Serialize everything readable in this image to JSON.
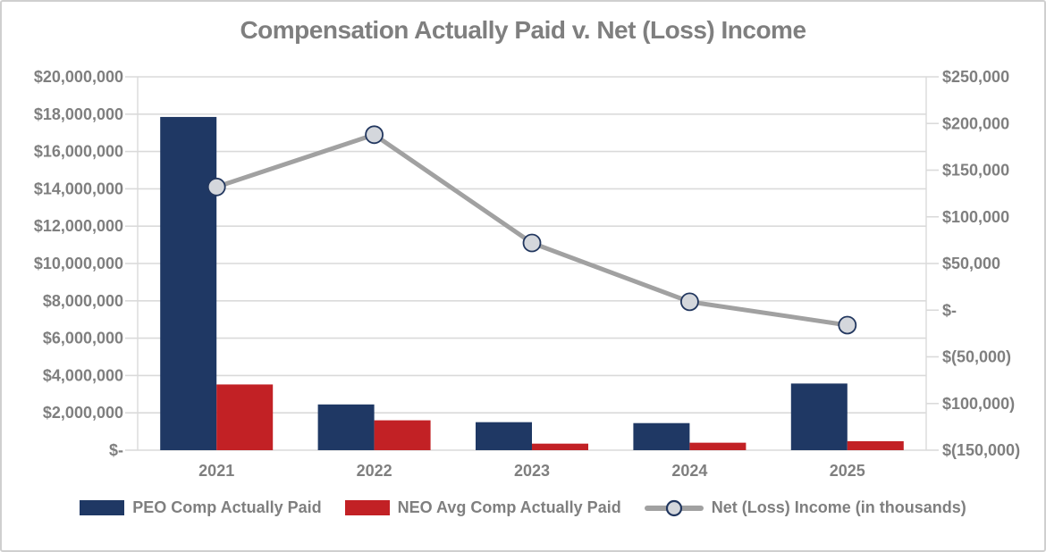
{
  "window": {
    "background": "#ffffff",
    "border_color": "#cfcfcf"
  },
  "chart_data": {
    "type": "combo-bar-line",
    "title": "Compensation Actually Paid v. Net (Loss) Income",
    "title_color": "#7f7f7f",
    "categories": [
      "2021",
      "2022",
      "2023",
      "2024",
      "2025"
    ],
    "series": [
      {
        "name": "PEO Comp Actually Paid",
        "type": "bar",
        "axis": "left",
        "color": "#1f3864",
        "values": [
          17850000,
          2450000,
          1500000,
          1450000,
          3570000
        ]
      },
      {
        "name": "NEO Avg Comp Actually Paid",
        "type": "bar",
        "axis": "left",
        "color": "#c22125",
        "values": [
          3520000,
          1600000,
          350000,
          400000,
          480000
        ]
      },
      {
        "name": "Net (Loss) Income (in thousands)",
        "type": "line",
        "axis": "right",
        "color": "#a1a1a1",
        "marker_fill": "#d4d7dc",
        "marker_stroke": "#22375f",
        "values": [
          132000,
          188000,
          72000,
          9000,
          -16000
        ]
      }
    ],
    "left_axis": {
      "min": 0,
      "max": 20000000,
      "step": 2000000,
      "tick_labels": [
        "$20,000,000",
        "$18,000,000",
        "$16,000,000",
        "$14,000,000",
        "$12,000,000",
        "$10,000,000",
        "$8,000,000",
        "$6,000,000",
        "$4,000,000",
        "$2,000,000",
        "$-"
      ]
    },
    "right_axis": {
      "min": -150000,
      "max": 250000,
      "step": 50000,
      "tick_labels": [
        "$250,000",
        "$200,000",
        "$150,000",
        "$100,000",
        "$50,000",
        "$-",
        "$(50,000)",
        "$100,000)",
        "$(150,000)"
      ]
    },
    "grid": true,
    "gridline_color": "#dadada",
    "axis_label_color": "#7f7f7f",
    "legend_position": "bottom"
  }
}
